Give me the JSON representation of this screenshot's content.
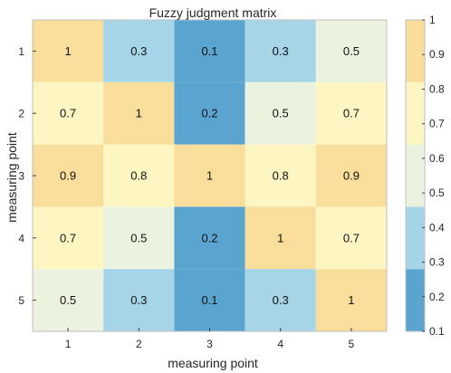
{
  "chart_data": {
    "type": "heatmap",
    "title": "Fuzzy judgment matrix",
    "xlabel": "measuring point",
    "ylabel": "measuring point",
    "x_categories": [
      "1",
      "2",
      "3",
      "4",
      "5"
    ],
    "y_categories": [
      "1",
      "2",
      "3",
      "4",
      "5"
    ],
    "values": [
      [
        1,
        0.3,
        0.1,
        0.3,
        0.5
      ],
      [
        0.7,
        1,
        0.2,
        0.5,
        0.7
      ],
      [
        0.9,
        0.8,
        1,
        0.8,
        0.9
      ],
      [
        0.7,
        0.5,
        0.2,
        1,
        0.7
      ],
      [
        0.5,
        0.3,
        0.1,
        0.3,
        1
      ]
    ],
    "value_labels": [
      [
        "1",
        "0.3",
        "0.1",
        "0.3",
        "0.5"
      ],
      [
        "0.7",
        "1",
        "0.2",
        "0.5",
        "0.7"
      ],
      [
        "0.9",
        "0.8",
        "1",
        "0.8",
        "0.9"
      ],
      [
        "0.7",
        "0.5",
        "0.2",
        "1",
        "0.7"
      ],
      [
        "0.5",
        "0.3",
        "0.1",
        "0.3",
        "1"
      ]
    ],
    "colorbar": {
      "range": [
        0.1,
        1
      ],
      "tick_labels": [
        "1",
        "0.9",
        "0.8",
        "0.7",
        "0.6",
        "0.5",
        "0.4",
        "0.3",
        "0.2",
        "0.1"
      ],
      "colors": [
        "#5aa5cf",
        "#a6d5e8",
        "#ebf3df",
        "#fdf6c2",
        "#f8de9a"
      ],
      "placement": "right"
    },
    "grid": false
  }
}
